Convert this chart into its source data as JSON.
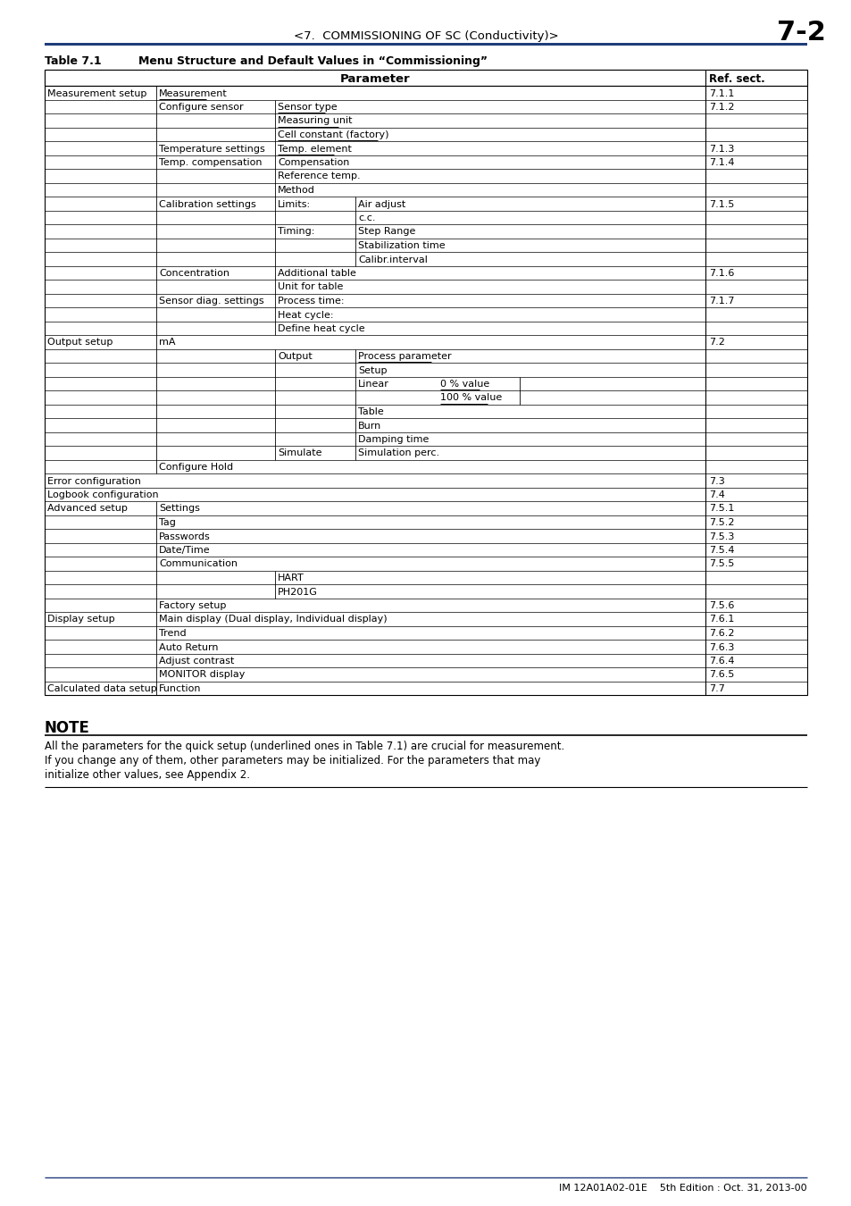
{
  "page_header_left": "<7.  COMMISSIONING OF SC (Conductivity)>",
  "page_header_right": "7-2",
  "table_title_label": "Table 7.1",
  "table_title_text": "Menu Structure and Default Values in “Commissioning”",
  "col_param_header": "Parameter",
  "col_ref_header": "Ref. sect.",
  "note_title": "NOTE",
  "note_text": "All the parameters for the quick setup (underlined ones in Table 7.1) are crucial for measurement.\nIf you change any of them, other parameters may be initialized. For the parameters that may\ninitialize other values, see Appendix 2.",
  "footer_text": "IM 12A01A02-01E    5th Edition : Oct. 31, 2013-00",
  "header_line_color": "#1f3d7a",
  "bg_color": "#ffffff",
  "text_color": "#000000",
  "table_rows": [
    {
      "c1": "Measurement setup",
      "c2": "Measurement",
      "ref": "7.1.1",
      "ul2": true
    },
    {
      "c2": "Configure sensor",
      "c3": "Sensor type",
      "ref": "7.1.2",
      "ul3": true
    },
    {
      "c3": "Measuring unit",
      "ul3": true
    },
    {
      "c3": "Cell constant (factory)",
      "ul3": true
    },
    {
      "c2": "Temperature settings",
      "c3": "Temp. element",
      "ref": "7.1.3",
      "ul3": true
    },
    {
      "c2": "Temp. compensation",
      "c3": "Compensation",
      "ref": "7.1.4"
    },
    {
      "c3": "Reference temp."
    },
    {
      "c3": "Method"
    },
    {
      "c2": "Calibration settings",
      "c3": "Limits:",
      "c4": "Air adjust",
      "ref": "7.1.5"
    },
    {
      "c4": "c.c."
    },
    {
      "c3": "Timing:",
      "c4": "Step Range"
    },
    {
      "c4": "Stabilization time"
    },
    {
      "c4": "Calibr.interval"
    },
    {
      "c2": "Concentration",
      "c3": "Additional table",
      "ref": "7.1.6"
    },
    {
      "c3": "Unit for table"
    },
    {
      "c2": "Sensor diag. settings",
      "c3": "Process time:",
      "ref": "7.1.7"
    },
    {
      "c3": "Heat cycle:"
    },
    {
      "c3": "Define heat cycle"
    },
    {
      "c1": "Output setup",
      "c2": "mA",
      "ref": "7.2"
    },
    {
      "c3": "Output",
      "c4": "Process parameter",
      "ul4": true
    },
    {
      "c4": "Setup"
    },
    {
      "c4": "Linear",
      "c5": "0 % value",
      "ul5": true
    },
    {
      "c5": "100 % value",
      "ul5": true
    },
    {
      "c4": "Table"
    },
    {
      "c4": "Burn"
    },
    {
      "c4": "Damping time"
    },
    {
      "c3": "Simulate",
      "c4": "Simulation perc."
    },
    {
      "c2": "Configure Hold"
    },
    {
      "c1": "Error configuration",
      "ref": "7.3"
    },
    {
      "c1": "Logbook configuration",
      "ref": "7.4"
    },
    {
      "c1": "Advanced setup",
      "c2": "Settings",
      "ref": "7.5.1"
    },
    {
      "c2": "Tag",
      "ref": "7.5.2"
    },
    {
      "c2": "Passwords",
      "ref": "7.5.3"
    },
    {
      "c2": "Date/Time",
      "ref": "7.5.4"
    },
    {
      "c2": "Communication",
      "ref": "7.5.5"
    },
    {
      "c3": "HART"
    },
    {
      "c3": "PH201G"
    },
    {
      "c2": "Factory setup",
      "ref": "7.5.6"
    },
    {
      "c1": "Display setup",
      "c2": "Main display (Dual display, Individual display)",
      "ref": "7.6.1"
    },
    {
      "c2": "Trend",
      "ref": "7.6.2"
    },
    {
      "c2": "Auto Return",
      "ref": "7.6.3"
    },
    {
      "c2": "Adjust contrast",
      "ref": "7.6.4"
    },
    {
      "c2": "MONITOR display",
      "ref": "7.6.5"
    },
    {
      "c1": "Calculated data setup",
      "c2": "Function",
      "ref": "7.7"
    }
  ]
}
